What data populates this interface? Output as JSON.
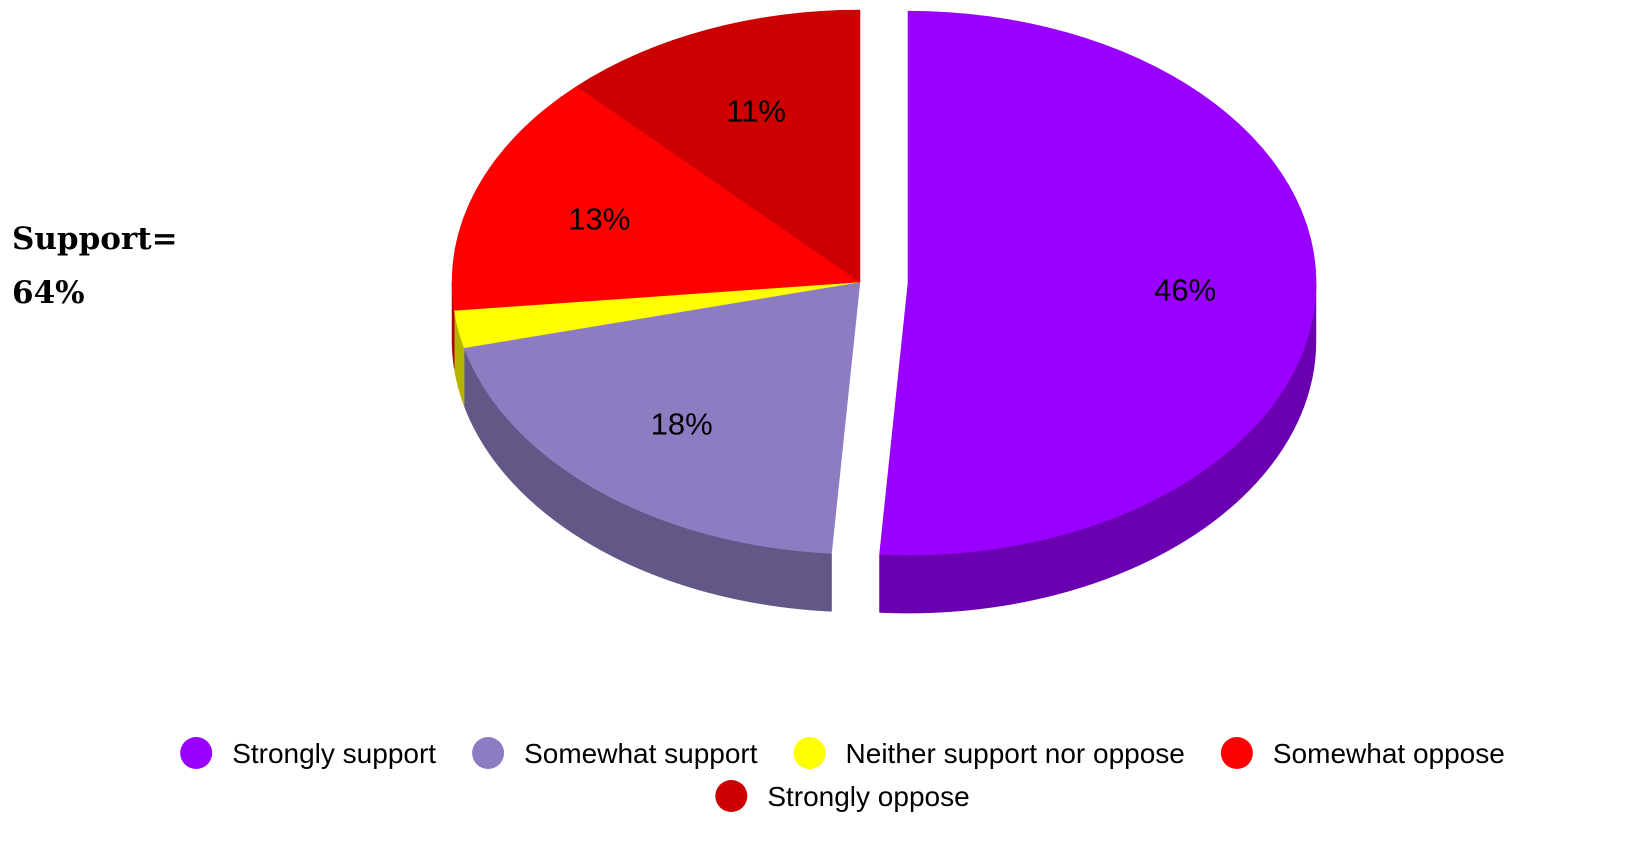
{
  "chart_data": {
    "type": "pie",
    "style": "3d-exploded",
    "annotation": [
      "Support=",
      "64%"
    ],
    "slices": [
      {
        "label": "Strongly support",
        "value": 46,
        "value_label": "46%",
        "color": "#9900ff",
        "side_color": "#6a00b0",
        "exploded": true
      },
      {
        "label": "Somewhat support",
        "value": 18,
        "value_label": "18%",
        "color": "#8e7cc3",
        "side_color": "#635788",
        "exploded": false
      },
      {
        "label": "Neither support nor oppose",
        "value": 2,
        "value_label": "",
        "color": "#ffff00",
        "side_color": "#b3b300",
        "exploded": false
      },
      {
        "label": "Somewhat oppose",
        "value": 13,
        "value_label": "13%",
        "color": "#ff0000",
        "side_color": "#b30000",
        "exploded": false
      },
      {
        "label": "Strongly oppose",
        "value": 11,
        "value_label": "11%",
        "color": "#cc0000",
        "side_color": "#8f0000",
        "exploded": false
      }
    ],
    "legend": {
      "position": "bottom"
    }
  }
}
